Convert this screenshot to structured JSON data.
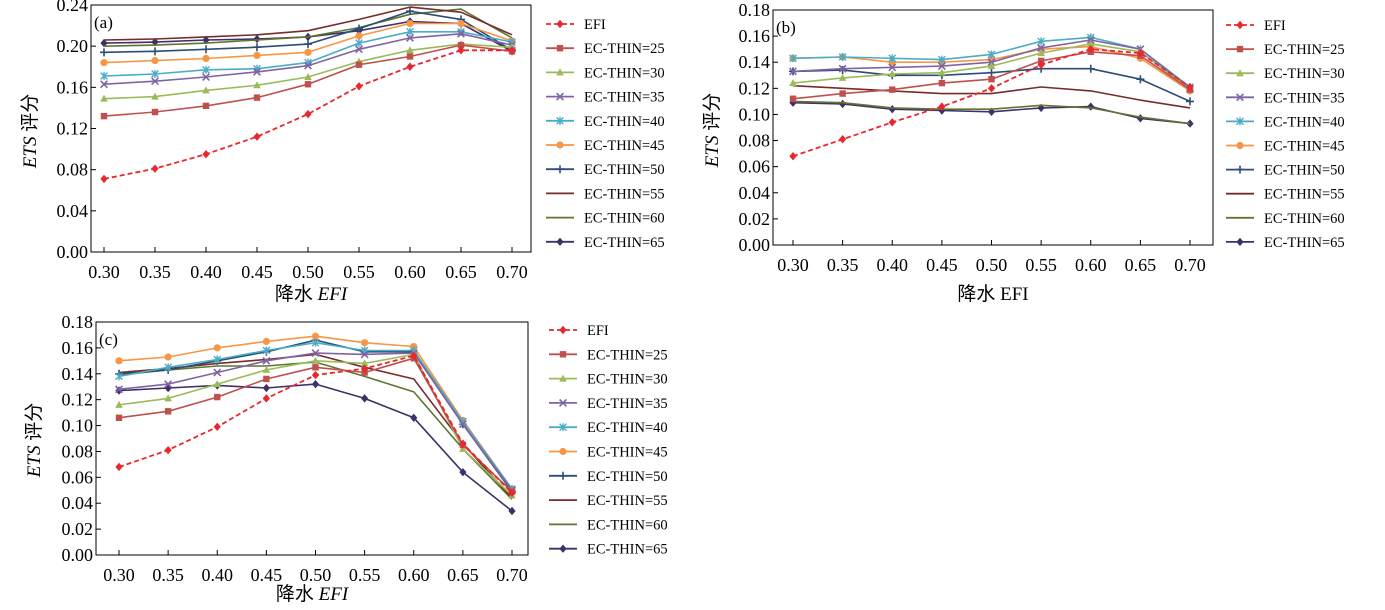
{
  "figure": {
    "series_names": [
      "EFI",
      "EC-THIN=25",
      "EC-THIN=30",
      "EC-THIN=35",
      "EC-THIN=40",
      "EC-THIN=45",
      "EC-THIN=50",
      "EC-THIN=55",
      "EC-THIN=60",
      "EC-THIN=65"
    ],
    "series_colors": [
      "#e8282e",
      "#c0504d",
      "#9bbb59",
      "#8064a2",
      "#4bacc6",
      "#f79646",
      "#2c4d75",
      "#772c2a",
      "#5f7530",
      "#403069"
    ],
    "series_markers": [
      "diamond",
      "square",
      "triangle",
      "x",
      "asterisk",
      "circle",
      "plus",
      "none",
      "none",
      "diamond"
    ]
  },
  "chart_data": [
    {
      "type": "line",
      "panel_label": "(a)",
      "xlabel_cn": "降水",
      "xlabel_italic": "EFI",
      "ylabel_italic": "ETS",
      "ylabel_cn": "评分",
      "x": [
        0.3,
        0.35,
        0.4,
        0.45,
        0.5,
        0.55,
        0.6,
        0.65,
        0.7
      ],
      "x_tick_labels": [
        "0.30",
        "0.35",
        "0.40",
        "0.45",
        "0.50",
        "0.55",
        "0.60",
        "0.65",
        "0.70"
      ],
      "ylim": [
        0,
        0.24
      ],
      "y_ticks": [
        0,
        0.04,
        0.08,
        0.12,
        0.16,
        0.2,
        0.24
      ],
      "y_tick_labels": [
        "0.00",
        "0.04",
        "0.08",
        "0.12",
        "0.16",
        "0.20",
        "0.24"
      ],
      "series": [
        {
          "name": "EFI",
          "values": [
            0.071,
            0.081,
            0.095,
            0.112,
            0.134,
            0.161,
            0.18,
            0.196,
            0.196
          ]
        },
        {
          "name": "EC-THIN=25",
          "values": [
            0.132,
            0.136,
            0.142,
            0.15,
            0.163,
            0.182,
            0.19,
            0.201,
            0.195
          ]
        },
        {
          "name": "EC-THIN=30",
          "values": [
            0.149,
            0.151,
            0.157,
            0.162,
            0.17,
            0.185,
            0.196,
            0.202,
            0.199
          ]
        },
        {
          "name": "EC-THIN=35",
          "values": [
            0.163,
            0.166,
            0.17,
            0.175,
            0.181,
            0.197,
            0.208,
            0.212,
            0.201
          ]
        },
        {
          "name": "EC-THIN=40",
          "values": [
            0.171,
            0.173,
            0.177,
            0.178,
            0.184,
            0.203,
            0.214,
            0.214,
            0.204
          ]
        },
        {
          "name": "EC-THIN=45",
          "values": [
            0.184,
            0.186,
            0.188,
            0.191,
            0.194,
            0.21,
            0.222,
            0.222,
            0.205
          ]
        },
        {
          "name": "EC-THIN=50",
          "values": [
            0.194,
            0.195,
            0.197,
            0.199,
            0.202,
            0.217,
            0.234,
            0.226,
            0.196
          ]
        },
        {
          "name": "EC-THIN=55",
          "values": [
            0.206,
            0.207,
            0.209,
            0.211,
            0.215,
            0.226,
            0.238,
            0.233,
            0.211
          ]
        },
        {
          "name": "EC-THIN=60",
          "values": [
            0.2,
            0.201,
            0.203,
            0.206,
            0.209,
            0.218,
            0.231,
            0.236,
            0.208
          ]
        },
        {
          "name": "EC-THIN=65",
          "values": [
            0.203,
            0.204,
            0.206,
            0.207,
            0.209,
            0.215,
            0.224,
            0.222,
            0.195
          ]
        }
      ],
      "legend": "right"
    },
    {
      "type": "line",
      "panel_label": "(b)",
      "xlabel_cn": "降水",
      "xlabel_italic": "EFI",
      "ylabel_italic": "ETS",
      "ylabel_cn": "评分",
      "x": [
        0.3,
        0.35,
        0.4,
        0.45,
        0.5,
        0.55,
        0.6,
        0.65,
        0.7
      ],
      "x_tick_labels": [
        "0.30",
        "0.35",
        "0.40",
        "0.45",
        "0.50",
        "0.55",
        "0.60",
        "0.65",
        "0.70"
      ],
      "ylim": [
        0,
        0.18
      ],
      "y_ticks": [
        0,
        0.02,
        0.04,
        0.06,
        0.08,
        0.1,
        0.12,
        0.14,
        0.16,
        0.18
      ],
      "y_tick_labels": [
        "0.00",
        "0.02",
        "0.04",
        "0.06",
        "0.08",
        "0.10",
        "0.12",
        "0.14",
        "0.16",
        "0.18"
      ],
      "series": [
        {
          "name": "EFI",
          "values": [
            0.068,
            0.081,
            0.094,
            0.106,
            0.12,
            0.138,
            0.15,
            0.147,
            0.121
          ]
        },
        {
          "name": "EC-THIN=25",
          "values": [
            0.112,
            0.116,
            0.119,
            0.124,
            0.127,
            0.141,
            0.148,
            0.145,
            0.119
          ]
        },
        {
          "name": "EC-THIN=30",
          "values": [
            0.124,
            0.128,
            0.131,
            0.132,
            0.137,
            0.147,
            0.154,
            0.148,
            0.119
          ]
        },
        {
          "name": "EC-THIN=35",
          "values": [
            0.133,
            0.135,
            0.136,
            0.137,
            0.14,
            0.151,
            0.157,
            0.15,
            0.12
          ]
        },
        {
          "name": "EC-THIN=40",
          "values": [
            0.143,
            0.144,
            0.143,
            0.142,
            0.146,
            0.156,
            0.159,
            0.15,
            0.121
          ]
        },
        {
          "name": "EC-THIN=45",
          "values": [
            0.143,
            0.144,
            0.14,
            0.14,
            0.142,
            0.15,
            0.152,
            0.143,
            0.118
          ]
        },
        {
          "name": "EC-THIN=50",
          "values": [
            0.133,
            0.134,
            0.13,
            0.13,
            0.132,
            0.135,
            0.135,
            0.127,
            0.11
          ]
        },
        {
          "name": "EC-THIN=55",
          "values": [
            0.122,
            0.12,
            0.118,
            0.116,
            0.116,
            0.121,
            0.118,
            0.111,
            0.105
          ]
        },
        {
          "name": "EC-THIN=60",
          "values": [
            0.11,
            0.109,
            0.105,
            0.104,
            0.104,
            0.107,
            0.105,
            0.098,
            0.093
          ]
        },
        {
          "name": "EC-THIN=65",
          "values": [
            0.109,
            0.108,
            0.104,
            0.103,
            0.102,
            0.105,
            0.106,
            0.097,
            0.093
          ]
        }
      ],
      "legend": "right"
    },
    {
      "type": "line",
      "panel_label": "(c)",
      "xlabel_cn": "降水",
      "xlabel_italic": "EFI",
      "ylabel_italic": "ETS",
      "ylabel_cn": "评分",
      "x": [
        0.3,
        0.35,
        0.4,
        0.45,
        0.5,
        0.55,
        0.6,
        0.65,
        0.7
      ],
      "x_tick_labels": [
        "0.30",
        "0.35",
        "0.40",
        "0.45",
        "0.50",
        "0.55",
        "0.60",
        "0.65",
        "0.70"
      ],
      "ylim": [
        0,
        0.18
      ],
      "y_ticks": [
        0,
        0.02,
        0.04,
        0.06,
        0.08,
        0.1,
        0.12,
        0.14,
        0.16,
        0.18
      ],
      "y_tick_labels": [
        "0.00",
        "0.02",
        "0.04",
        "0.06",
        "0.08",
        "0.10",
        "0.12",
        "0.14",
        "0.16",
        "0.18"
      ],
      "series": [
        {
          "name": "EFI",
          "values": [
            0.068,
            0.081,
            0.099,
            0.121,
            0.139,
            0.144,
            0.154,
            0.086,
            0.048
          ]
        },
        {
          "name": "EC-THIN=25",
          "values": [
            0.106,
            0.111,
            0.122,
            0.136,
            0.145,
            0.141,
            0.152,
            0.085,
            0.049
          ]
        },
        {
          "name": "EC-THIN=30",
          "values": [
            0.116,
            0.121,
            0.132,
            0.143,
            0.15,
            0.148,
            0.155,
            0.082,
            0.046
          ]
        },
        {
          "name": "EC-THIN=35",
          "values": [
            0.128,
            0.132,
            0.141,
            0.15,
            0.156,
            0.155,
            0.156,
            0.101,
            0.05
          ]
        },
        {
          "name": "EC-THIN=40",
          "values": [
            0.138,
            0.145,
            0.151,
            0.158,
            0.164,
            0.158,
            0.158,
            0.103,
            0.051
          ]
        },
        {
          "name": "EC-THIN=45",
          "values": [
            0.15,
            0.153,
            0.16,
            0.165,
            0.169,
            0.164,
            0.161,
            0.104,
            0.051
          ]
        },
        {
          "name": "EC-THIN=50",
          "values": [
            0.14,
            0.143,
            0.15,
            0.157,
            0.166,
            0.157,
            0.157,
            0.101,
            0.049
          ]
        },
        {
          "name": "EC-THIN=55",
          "values": [
            0.141,
            0.144,
            0.148,
            0.151,
            0.155,
            0.145,
            0.136,
            0.086,
            0.044
          ]
        },
        {
          "name": "EC-THIN=60",
          "values": [
            0.139,
            0.143,
            0.146,
            0.146,
            0.149,
            0.138,
            0.126,
            0.082,
            0.043
          ]
        },
        {
          "name": "EC-THIN=65",
          "values": [
            0.127,
            0.129,
            0.131,
            0.129,
            0.132,
            0.121,
            0.106,
            0.064,
            0.034
          ]
        }
      ],
      "legend": "right"
    }
  ]
}
